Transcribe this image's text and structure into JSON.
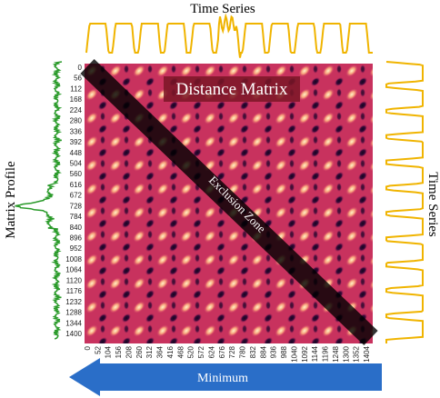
{
  "labels": {
    "top_title": "Time Series",
    "right_title": "Time Series",
    "left_title": "Matrix Profile",
    "matrix_label": "Distance Matrix",
    "zone_label": "Exclusion Zone",
    "arrow_label": "Minimum"
  },
  "y_ticks": [
    "0",
    "56",
    "112",
    "168",
    "224",
    "280",
    "336",
    "392",
    "448",
    "504",
    "560",
    "616",
    "672",
    "728",
    "784",
    "840",
    "896",
    "952",
    "1008",
    "1064",
    "1120",
    "1176",
    "1232",
    "1288",
    "1344",
    "1400"
  ],
  "x_ticks": [
    "0",
    "52",
    "104",
    "156",
    "208",
    "260",
    "312",
    "364",
    "416",
    "468",
    "520",
    "572",
    "624",
    "676",
    "728",
    "780",
    "832",
    "884",
    "936",
    "988",
    "1040",
    "1092",
    "1144",
    "1196",
    "1248",
    "1300",
    "1352",
    "1404"
  ]
}
